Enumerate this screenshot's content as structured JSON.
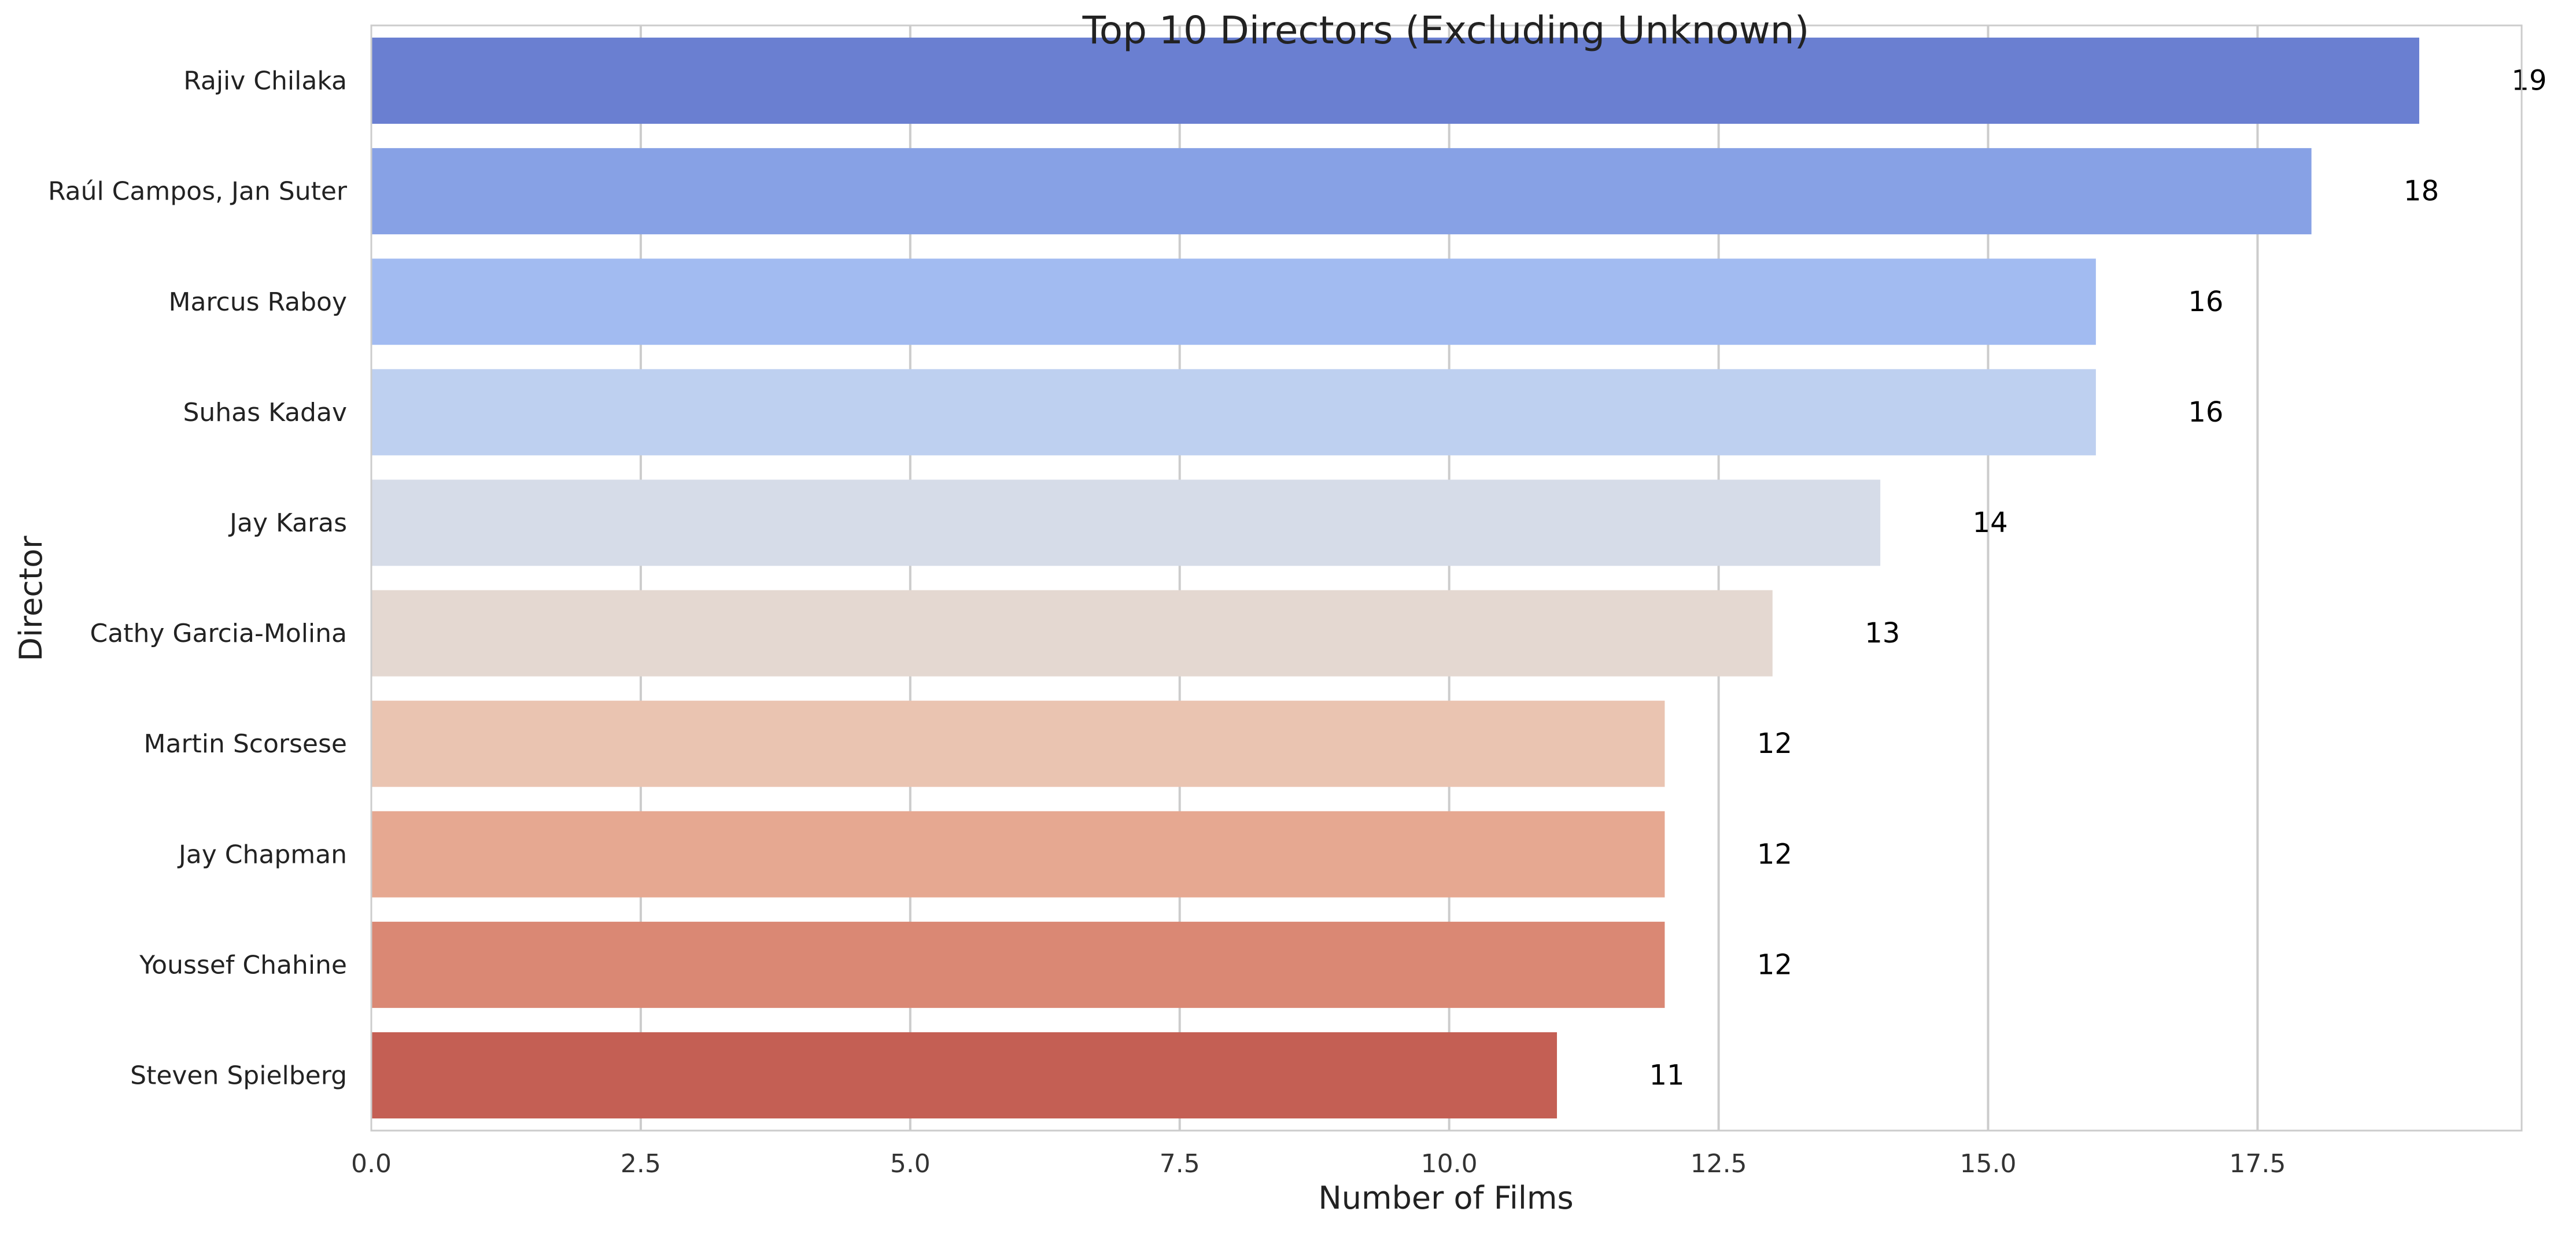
{
  "chart_data": {
    "type": "bar",
    "orientation": "horizontal",
    "title": "Top 10 Directors (Excluding Unknown)",
    "xlabel": "Number of Films",
    "ylabel": "Director",
    "categories": [
      "Rajiv Chilaka",
      "Raúl Campos, Jan Suter",
      "Marcus Raboy",
      "Suhas Kadav",
      "Jay Karas",
      "Cathy Garcia-Molina",
      "Martin Scorsese",
      "Jay Chapman",
      "Youssef Chahine",
      "Steven Spielberg"
    ],
    "values": [
      19,
      18,
      16,
      16,
      14,
      13,
      12,
      12,
      12,
      11
    ],
    "data_labels": [
      "19",
      "18",
      "16",
      "16",
      "14",
      "13",
      "12",
      "12",
      "12",
      "11"
    ],
    "colors": [
      "#6a7fd1",
      "#87a1e5",
      "#a2bbf1",
      "#bed0f0",
      "#d6dce8",
      "#e4d8d1",
      "#eac4b1",
      "#e6a891",
      "#da8874",
      "#c45f54"
    ],
    "xlim": [
      0,
      19.95
    ],
    "xticks": [
      0,
      2.5,
      5,
      7.5,
      10,
      12.5,
      15,
      17.5
    ],
    "xtick_labels": [
      "0.0",
      "2.5",
      "5.0",
      "7.5",
      "10.0",
      "12.5",
      "15.0",
      "17.5"
    ],
    "grid": true,
    "grid_axis": "x",
    "legend": "none"
  }
}
